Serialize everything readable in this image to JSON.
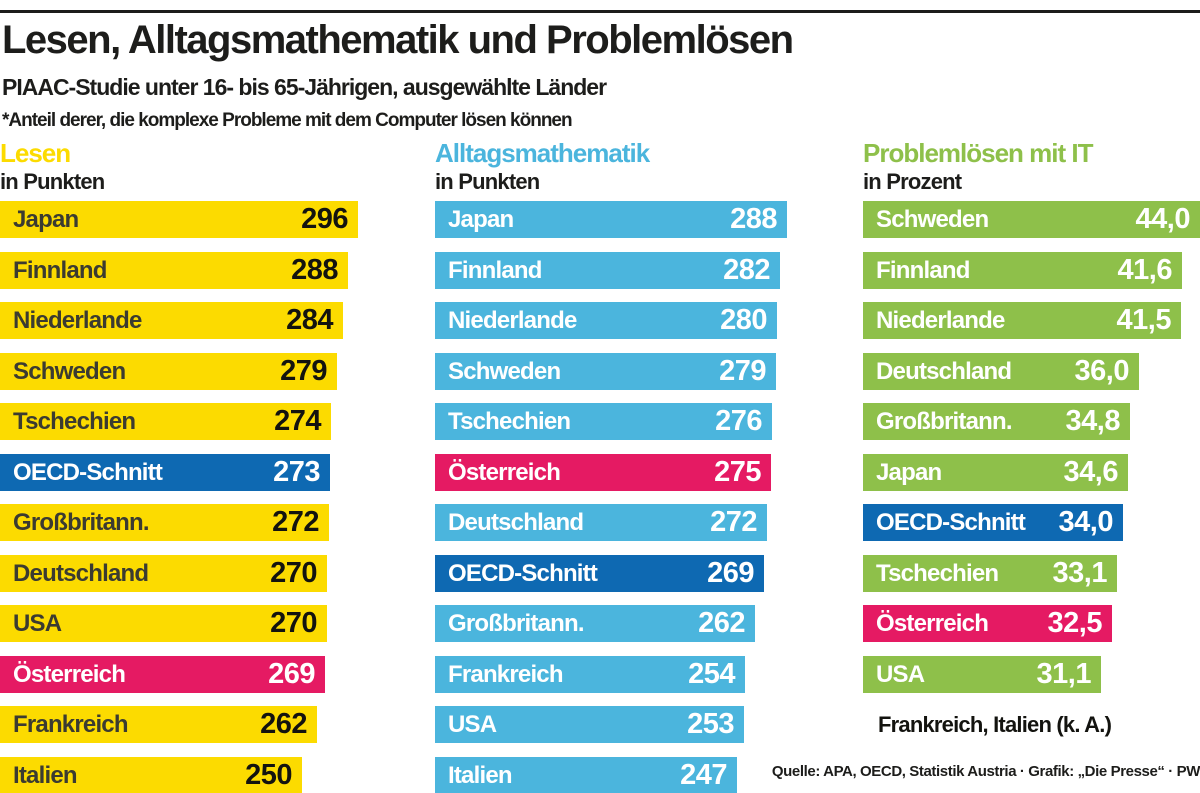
{
  "page": {
    "title": "Lesen, Alltagsmathematik und Problemlösen",
    "subtitle": "PIAAC-Studie unter 16- bis 65-Jährigen, ausgewählte Länder",
    "footnote": "*Anteil derer, die komplexe Probleme mit dem Computer lösen können",
    "source": "Quelle: APA, OECD, Statistik Austria · Grafik: „Die Presse“ · PW"
  },
  "colors": {
    "yellow": "#fcdb00",
    "light_blue": "#4bb5dd",
    "green": "#8ec04a",
    "oecd_blue": "#0e69b2",
    "austria_pink": "#e51a63",
    "text_black": "#1d1d1b",
    "label_on_yellow": "#3b3b31",
    "value_on_yellow": "#13130f",
    "white": "#ffffff"
  },
  "chart_data": [
    {
      "type": "bar",
      "title": "Lesen",
      "unit_label": "in Punkten",
      "accent": "#fcdb00",
      "label_color": "#3b3b31",
      "value_color": "#13130f",
      "xlim": [
        0,
        296
      ],
      "bars": [
        {
          "label": "Japan",
          "value": 296,
          "display": "296",
          "style": "default"
        },
        {
          "label": "Finnland",
          "value": 288,
          "display": "288",
          "style": "default"
        },
        {
          "label": "Niederlande",
          "value": 284,
          "display": "284",
          "style": "default"
        },
        {
          "label": "Schweden",
          "value": 279,
          "display": "279",
          "style": "default"
        },
        {
          "label": "Tschechien",
          "value": 274,
          "display": "274",
          "style": "default"
        },
        {
          "label": "OECD-Schnitt",
          "value": 273,
          "display": "273",
          "style": "oecd"
        },
        {
          "label": "Großbritann.",
          "value": 272,
          "display": "272",
          "style": "default"
        },
        {
          "label": "Deutschland",
          "value": 270,
          "display": "270",
          "style": "default"
        },
        {
          "label": "USA",
          "value": 270,
          "display": "270",
          "style": "default"
        },
        {
          "label": "Österreich",
          "value": 269,
          "display": "269",
          "style": "austria"
        },
        {
          "label": "Frankreich",
          "value": 262,
          "display": "262",
          "style": "default"
        },
        {
          "label": "Italien",
          "value": 250,
          "display": "250",
          "style": "default"
        }
      ]
    },
    {
      "type": "bar",
      "title": "Alltagsmathematik",
      "unit_label": "in Punkten",
      "accent": "#4bb5dd",
      "label_color": "#ffffff",
      "value_color": "#ffffff",
      "xlim": [
        0,
        288
      ],
      "bars": [
        {
          "label": "Japan",
          "value": 288,
          "display": "288",
          "style": "default"
        },
        {
          "label": "Finnland",
          "value": 282,
          "display": "282",
          "style": "default"
        },
        {
          "label": "Niederlande",
          "value": 280,
          "display": "280",
          "style": "default"
        },
        {
          "label": "Schweden",
          "value": 279,
          "display": "279",
          "style": "default"
        },
        {
          "label": "Tschechien",
          "value": 276,
          "display": "276",
          "style": "default"
        },
        {
          "label": "Österreich",
          "value": 275,
          "display": "275",
          "style": "austria"
        },
        {
          "label": "Deutschland",
          "value": 272,
          "display": "272",
          "style": "default"
        },
        {
          "label": "OECD-Schnitt",
          "value": 269,
          "display": "269",
          "style": "oecd"
        },
        {
          "label": "Großbritann.",
          "value": 262,
          "display": "262",
          "style": "default"
        },
        {
          "label": "Frankreich",
          "value": 254,
          "display": "254",
          "style": "default"
        },
        {
          "label": "USA",
          "value": 253,
          "display": "253",
          "style": "default"
        },
        {
          "label": "Italien",
          "value": 247,
          "display": "247",
          "style": "default"
        }
      ]
    },
    {
      "type": "bar",
      "title": "Problemlösen mit IT",
      "unit_label": "in Prozent",
      "accent": "#8ec04a",
      "label_color": "#ffffff",
      "value_color": "#ffffff",
      "xlim": [
        0,
        44.0
      ],
      "note": "Frankreich, Italien (k. A.)",
      "bars": [
        {
          "label": "Schweden",
          "value": 44.0,
          "display": "44,0",
          "style": "default"
        },
        {
          "label": "Finnland",
          "value": 41.6,
          "display": "41,6",
          "style": "default"
        },
        {
          "label": "Niederlande",
          "value": 41.5,
          "display": "41,5",
          "style": "default"
        },
        {
          "label": "Deutschland",
          "value": 36.0,
          "display": "36,0",
          "style": "default"
        },
        {
          "label": "Großbritann.",
          "value": 34.8,
          "display": "34,8",
          "style": "default"
        },
        {
          "label": "Japan",
          "value": 34.6,
          "display": "34,6",
          "style": "default"
        },
        {
          "label": "OECD-Schnitt",
          "value": 34.0,
          "display": "34,0",
          "style": "oecd"
        },
        {
          "label": "Tschechien",
          "value": 33.1,
          "display": "33,1",
          "style": "default"
        },
        {
          "label": "Österreich",
          "value": 32.5,
          "display": "32,5",
          "style": "austria"
        },
        {
          "label": "USA",
          "value": 31.1,
          "display": "31,1",
          "style": "default"
        }
      ]
    }
  ]
}
